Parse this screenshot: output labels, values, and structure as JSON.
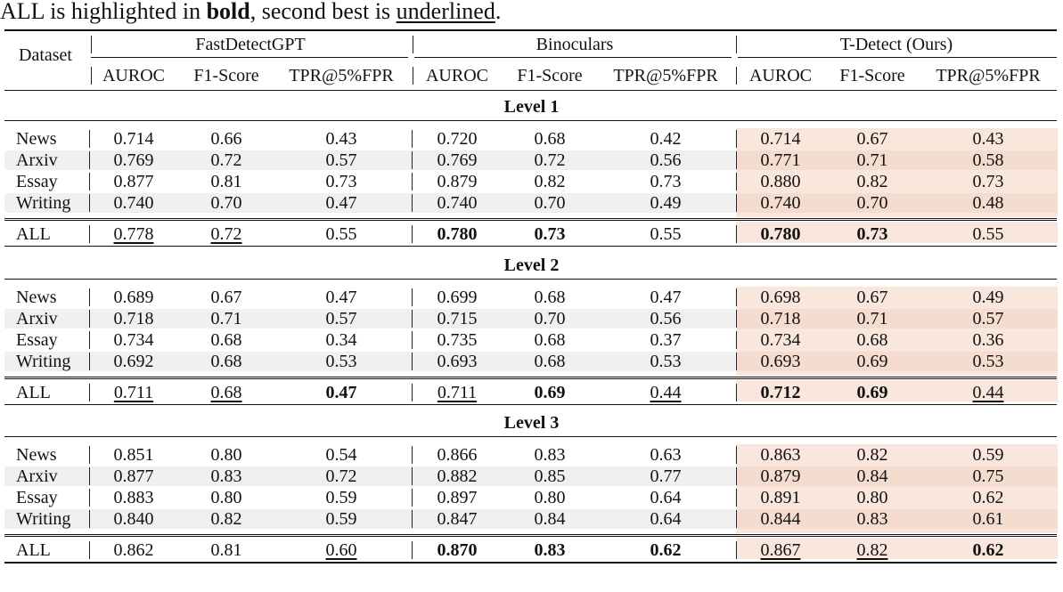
{
  "caption": {
    "pre": "ALL is highlighted in ",
    "bold": "bold",
    "mid": ", second best is ",
    "underline": "underlined",
    "post": "."
  },
  "header": {
    "dataset": "Dataset",
    "methods": [
      "FastDetectGPT",
      "Binoculars",
      "T-Detect (Ours)"
    ],
    "metrics": [
      "AUROC",
      "F1-Score",
      "TPR@5%FPR"
    ]
  },
  "groups": [
    {
      "level": "Level 1",
      "rows": [
        {
          "name": "News",
          "vals": [
            "0.714",
            "0.66",
            "0.43",
            "0.720",
            "0.68",
            "0.42",
            "0.714",
            "0.67",
            "0.43"
          ]
        },
        {
          "name": "Arxiv",
          "vals": [
            "0.769",
            "0.72",
            "0.57",
            "0.769",
            "0.72",
            "0.56",
            "0.771",
            "0.71",
            "0.58"
          ]
        },
        {
          "name": "Essay",
          "vals": [
            "0.877",
            "0.81",
            "0.73",
            "0.879",
            "0.82",
            "0.73",
            "0.880",
            "0.82",
            "0.73"
          ]
        },
        {
          "name": "Writing",
          "vals": [
            "0.740",
            "0.70",
            "0.47",
            "0.740",
            "0.70",
            "0.49",
            "0.740",
            "0.70",
            "0.48"
          ]
        }
      ],
      "all": {
        "name": "ALL",
        "vals": [
          "0.778",
          "0.72",
          "0.55",
          "0.780",
          "0.73",
          "0.55",
          "0.780",
          "0.73",
          "0.55"
        ],
        "style": [
          "u",
          "u",
          "",
          "b",
          "b",
          "",
          "b",
          "b",
          ""
        ]
      }
    },
    {
      "level": "Level 2",
      "rows": [
        {
          "name": "News",
          "vals": [
            "0.689",
            "0.67",
            "0.47",
            "0.699",
            "0.68",
            "0.47",
            "0.698",
            "0.67",
            "0.49"
          ]
        },
        {
          "name": "Arxiv",
          "vals": [
            "0.718",
            "0.71",
            "0.57",
            "0.715",
            "0.70",
            "0.56",
            "0.718",
            "0.71",
            "0.57"
          ]
        },
        {
          "name": "Essay",
          "vals": [
            "0.734",
            "0.68",
            "0.34",
            "0.735",
            "0.68",
            "0.37",
            "0.734",
            "0.68",
            "0.36"
          ]
        },
        {
          "name": "Writing",
          "vals": [
            "0.692",
            "0.68",
            "0.53",
            "0.693",
            "0.68",
            "0.53",
            "0.693",
            "0.69",
            "0.53"
          ]
        }
      ],
      "all": {
        "name": "ALL",
        "vals": [
          "0.711",
          "0.68",
          "0.47",
          "0.711",
          "0.69",
          "0.44",
          "0.712",
          "0.69",
          "0.44"
        ],
        "style": [
          "u",
          "u",
          "b",
          "u",
          "b",
          "u",
          "b",
          "b",
          "u"
        ]
      }
    },
    {
      "level": "Level 3",
      "rows": [
        {
          "name": "News",
          "vals": [
            "0.851",
            "0.80",
            "0.54",
            "0.866",
            "0.83",
            "0.63",
            "0.863",
            "0.82",
            "0.59"
          ]
        },
        {
          "name": "Arxiv",
          "vals": [
            "0.877",
            "0.83",
            "0.72",
            "0.882",
            "0.85",
            "0.77",
            "0.879",
            "0.84",
            "0.75"
          ]
        },
        {
          "name": "Essay",
          "vals": [
            "0.883",
            "0.80",
            "0.59",
            "0.897",
            "0.80",
            "0.64",
            "0.891",
            "0.80",
            "0.62"
          ]
        },
        {
          "name": "Writing",
          "vals": [
            "0.840",
            "0.82",
            "0.59",
            "0.847",
            "0.84",
            "0.64",
            "0.844",
            "0.83",
            "0.61"
          ]
        }
      ],
      "all": {
        "name": "ALL",
        "vals": [
          "0.862",
          "0.81",
          "0.60",
          "0.870",
          "0.83",
          "0.62",
          "0.867",
          "0.82",
          "0.62"
        ],
        "style": [
          "",
          "",
          "u",
          "b",
          "b",
          "b",
          "u",
          "u",
          "b"
        ]
      }
    }
  ]
}
